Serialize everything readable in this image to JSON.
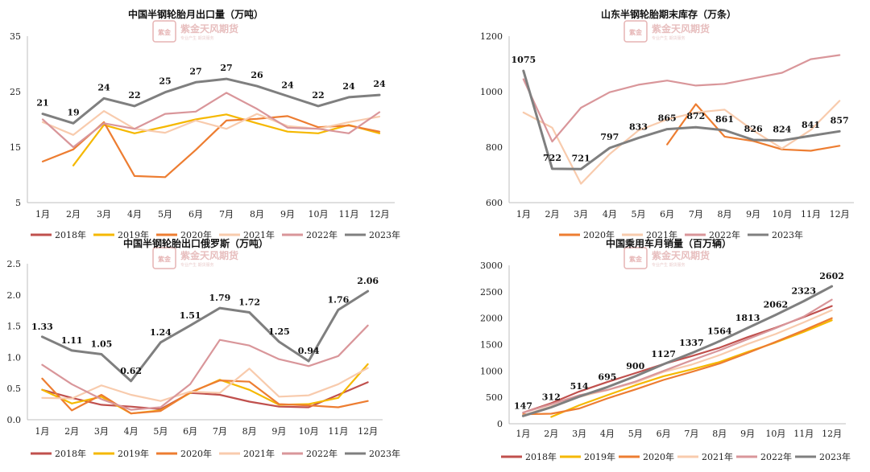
{
  "watermark": {
    "text": "紫金天风期货",
    "sub": "专业产生 期货服务",
    "seal": "紫金天风"
  },
  "colors": {
    "2018年": "#c0504d",
    "2019年": "#f5b800",
    "2020年": "#ed7d31",
    "2021年": "#f8cbad",
    "2022年": "#d9969a",
    "2023年": "#7f7f7f"
  },
  "chart_data": [
    {
      "type": "line",
      "title": "中国半钢轮胎月出口量（万吨）",
      "x": [
        "1月",
        "2月",
        "3月",
        "4月",
        "5月",
        "6月",
        "7月",
        "8月",
        "9月",
        "10月",
        "11月",
        "12月"
      ],
      "ylim": [
        5,
        35
      ],
      "yticks": [
        5,
        15,
        25,
        35
      ],
      "legend_position": "bottom",
      "series": [
        {
          "name": "2018年",
          "values": [
            null,
            null,
            null,
            null,
            null,
            null,
            null,
            null,
            null,
            null,
            null,
            null
          ]
        },
        {
          "name": "2019年",
          "values": [
            null,
            11.7,
            19.0,
            17.5,
            18.7,
            20.0,
            20.9,
            19.3,
            17.8,
            17.5,
            19.0,
            17.5
          ]
        },
        {
          "name": "2020年",
          "values": [
            12.4,
            14.6,
            19.5,
            9.8,
            9.6,
            14.5,
            19.8,
            20.1,
            20.6,
            18.6,
            18.9,
            17.8
          ]
        },
        {
          "name": "2021年",
          "values": [
            19.5,
            17.2,
            21.5,
            18.3,
            17.6,
            19.8,
            18.3,
            21.0,
            18.8,
            18.3,
            19.5,
            20.5
          ]
        },
        {
          "name": "2022年",
          "values": [
            20.0,
            15.0,
            19.3,
            18.3,
            21.0,
            21.4,
            24.8,
            21.9,
            18.5,
            18.3,
            17.5,
            21.3
          ]
        },
        {
          "name": "2023年",
          "values": [
            21,
            19.3,
            23.8,
            22.4,
            24.9,
            26.7,
            27.3,
            26.0,
            24.2,
            22.4,
            24.0,
            24.4
          ]
        }
      ],
      "data_labels": {
        "series": "2023年",
        "labels": [
          "21",
          "19",
          "24",
          "22",
          "25",
          "27",
          "27",
          "26",
          "24",
          "22",
          "24",
          "24"
        ]
      }
    },
    {
      "type": "line",
      "title": "山东半钢轮胎期末库存（万条）",
      "x": [
        "1月",
        "2月",
        "3月",
        "4月",
        "5月",
        "6月",
        "7月",
        "8月",
        "9月",
        "10月",
        "11月",
        "12月"
      ],
      "ylim": [
        600,
        1200
      ],
      "yticks": [
        600,
        800,
        1000,
        1200
      ],
      "legend_position": "bottom",
      "series": [
        {
          "name": "2020年",
          "values": [
            null,
            null,
            null,
            null,
            null,
            810,
            955,
            838,
            822,
            792,
            787,
            805
          ]
        },
        {
          "name": "2021年",
          "values": [
            925,
            870,
            668,
            775,
            860,
            900,
            925,
            935,
            860,
            795,
            862,
            967
          ]
        },
        {
          "name": "2022年",
          "values": [
            1045,
            820,
            942,
            998,
            1025,
            1040,
            1022,
            1028,
            1048,
            1068,
            1117,
            1132
          ]
        },
        {
          "name": "2023年",
          "values": [
            1075,
            722,
            721,
            797,
            833,
            865,
            872,
            861,
            826,
            824,
            841,
            857
          ]
        }
      ],
      "data_labels": {
        "series": "2023年",
        "labels": [
          "1075",
          "722",
          "721",
          "797",
          "833",
          "865",
          "872",
          "861",
          "826",
          "824",
          "841",
          "857"
        ]
      }
    },
    {
      "type": "line",
      "title": "中国半钢轮胎出口俄罗斯（万吨）",
      "x": [
        "1月",
        "2月",
        "3月",
        "4月",
        "5月",
        "6月",
        "7月",
        "8月",
        "9月",
        "10月",
        "11月",
        "12月"
      ],
      "ylim": [
        0.0,
        2.5
      ],
      "yticks": [
        0.0,
        0.5,
        1.0,
        1.5,
        2.0,
        2.5
      ],
      "legend_position": "bottom",
      "series": [
        {
          "name": "2018年",
          "values": [
            0.48,
            0.35,
            0.24,
            0.21,
            0.17,
            0.43,
            0.4,
            0.29,
            0.21,
            0.2,
            0.4,
            0.6
          ]
        },
        {
          "name": "2019年",
          "values": [
            0.48,
            0.26,
            0.37,
            0.1,
            0.15,
            0.43,
            0.64,
            0.48,
            0.24,
            0.25,
            0.35,
            0.89
          ]
        },
        {
          "name": "2020年",
          "values": [
            0.66,
            0.15,
            0.4,
            0.1,
            0.14,
            0.44,
            0.63,
            0.61,
            0.25,
            0.23,
            0.2,
            0.3
          ]
        },
        {
          "name": "2021年",
          "values": [
            0.35,
            0.34,
            0.55,
            0.4,
            0.3,
            0.45,
            0.43,
            0.82,
            0.37,
            0.39,
            0.57,
            0.83
          ]
        },
        {
          "name": "2022年",
          "values": [
            0.88,
            0.57,
            0.33,
            0.16,
            0.2,
            0.57,
            1.28,
            1.19,
            0.97,
            0.86,
            1.02,
            1.51
          ]
        },
        {
          "name": "2023年",
          "values": [
            1.33,
            1.11,
            1.05,
            0.62,
            1.24,
            1.51,
            1.79,
            1.72,
            1.25,
            0.94,
            1.76,
            2.06
          ]
        }
      ],
      "data_labels": {
        "series": "2023年",
        "labels": [
          "1.33",
          "1.11",
          "1.05",
          "0.62",
          "1.24",
          "1.51",
          "1.79",
          "1.72",
          "1.25",
          "0.94",
          "1.76",
          "2.06"
        ]
      }
    },
    {
      "type": "line",
      "title": "中国乘用车月销量（百万辆）",
      "x": [
        "1月",
        "2月",
        "3月",
        "4月",
        "5月",
        "6月",
        "7月",
        "8月",
        "9月",
        "10月",
        "11月",
        "12月"
      ],
      "ylim": [
        0,
        3000
      ],
      "yticks": [
        0,
        500,
        1000,
        1500,
        2000,
        2500,
        3000
      ],
      "legend_position": "bottom",
      "series": [
        {
          "name": "2018年",
          "values": [
            210,
            390,
            610,
            790,
            960,
            1130,
            1280,
            1440,
            1640,
            1820,
            2020,
            2230
          ]
        },
        {
          "name": "2019年",
          "values": [
            null,
            130,
            350,
            540,
            730,
            900,
            1030,
            1170,
            1360,
            1540,
            1740,
            1960
          ]
        },
        {
          "name": "2020年",
          "values": [
            180,
            190,
            290,
            480,
            650,
            830,
            980,
            1140,
            1340,
            1550,
            1770,
            2000
          ]
        },
        {
          "name": "2021年",
          "values": [
            160,
            330,
            510,
            640,
            780,
            980,
            1120,
            1300,
            1510,
            1700,
            1920,
            2150
          ]
        },
        {
          "name": "2022年",
          "values": [
            210,
            370,
            540,
            640,
            800,
            1000,
            1200,
            1390,
            1600,
            1810,
            2030,
            2350
          ]
        },
        {
          "name": "2023年",
          "values": [
            147,
            312,
            514,
            695,
            900,
            1127,
            1337,
            1564,
            1813,
            2062,
            2323,
            2602
          ]
        }
      ],
      "data_labels": {
        "series": "2023年",
        "labels": [
          "147",
          "312",
          "514",
          "695",
          "900",
          "1127",
          "1337",
          "1564",
          "1813",
          "2062",
          "2323",
          "2602"
        ]
      }
    }
  ]
}
